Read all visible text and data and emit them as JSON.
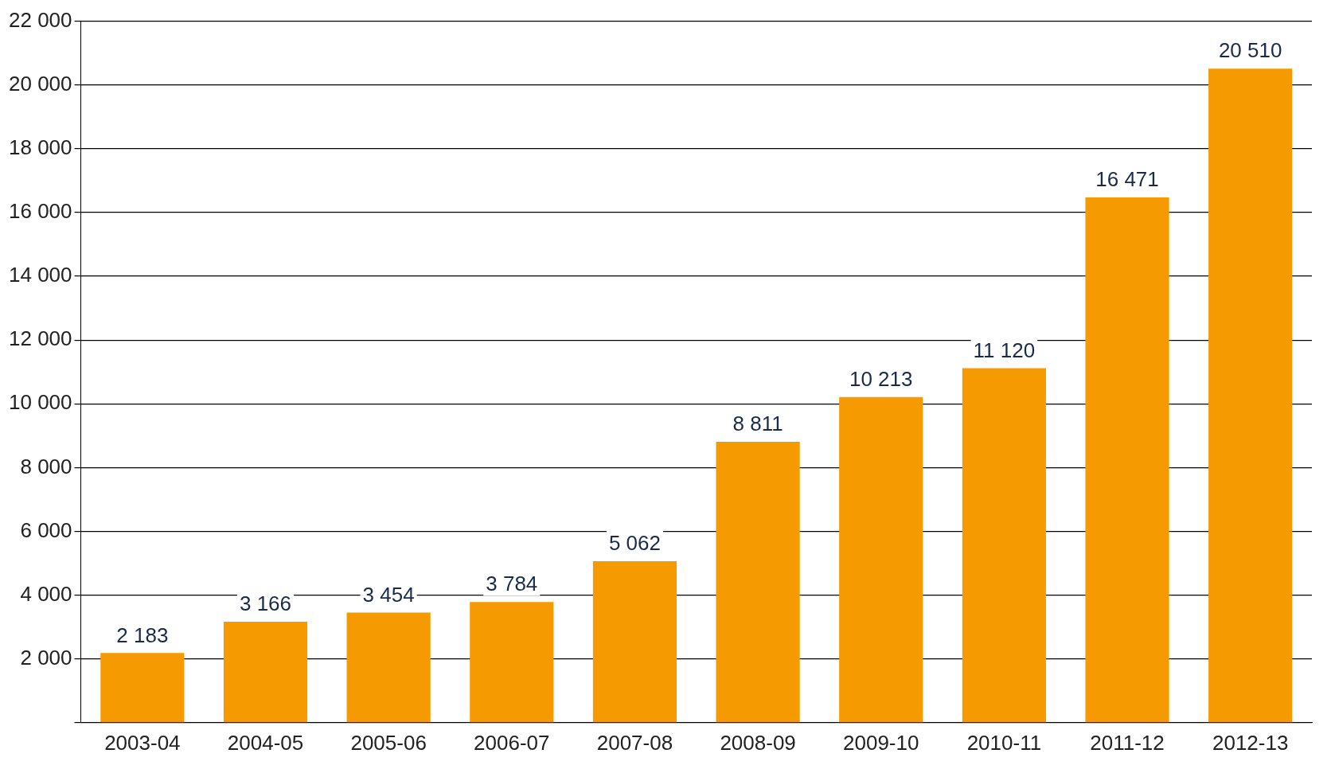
{
  "chart_data": {
    "type": "bar",
    "categories": [
      "2003-04",
      "2004-05",
      "2005-06",
      "2006-07",
      "2007-08",
      "2008-09",
      "2009-10",
      "2010-11",
      "2011-12",
      "2012-13"
    ],
    "values": [
      2183,
      3166,
      3454,
      3784,
      5062,
      8811,
      10213,
      11120,
      16471,
      20510
    ],
    "value_labels": [
      "2 183",
      "3 166",
      "3 454",
      "3 784",
      "5 062",
      "8 811",
      "10 213",
      "11 120",
      "16 471",
      "20 510"
    ],
    "color": "#f59a00",
    "ylim": [
      0,
      22000
    ],
    "yticks": [
      {
        "value": 0,
        "label": null
      },
      {
        "value": 2000,
        "label": "2 000"
      },
      {
        "value": 4000,
        "label": "4 000"
      },
      {
        "value": 6000,
        "label": "6 000"
      },
      {
        "value": 8000,
        "label": "8 000"
      },
      {
        "value": 10000,
        "label": "10 000"
      },
      {
        "value": 12000,
        "label": "12 000"
      },
      {
        "value": 14000,
        "label": "14 000"
      },
      {
        "value": 16000,
        "label": "16 000"
      },
      {
        "value": 18000,
        "label": "18 000"
      },
      {
        "value": 20000,
        "label": "20 000"
      },
      {
        "value": 22000,
        "label": "22 000"
      }
    ],
    "grid": "y",
    "legend": false
  }
}
